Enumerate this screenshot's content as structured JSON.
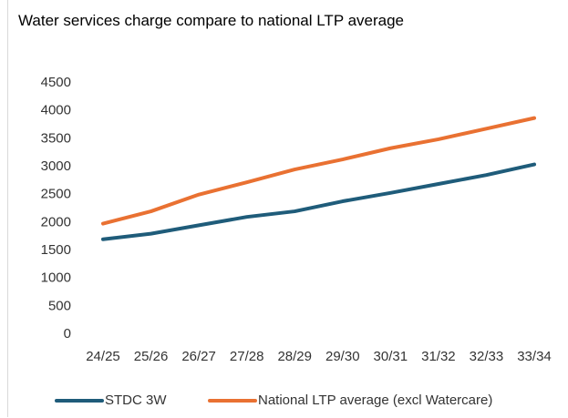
{
  "chart_data": {
    "type": "line",
    "title": "Water services charge compare to national LTP average",
    "categories": [
      "24/25",
      "25/26",
      "26/27",
      "27/28",
      "28/29",
      "29/30",
      "30/31",
      "31/32",
      "32/33",
      "33/34"
    ],
    "series": [
      {
        "name": "STDC 3W",
        "color": "#1f5c7a",
        "values": [
          1700,
          1800,
          1950,
          2100,
          2200,
          2380,
          2530,
          2690,
          2850,
          3040
        ]
      },
      {
        "name": "National LTP average (excl Watercare)",
        "color": "#e97132",
        "values": [
          1980,
          2200,
          2500,
          2720,
          2950,
          3130,
          3330,
          3490,
          3680,
          3870
        ]
      }
    ],
    "ylim": [
      0,
      4500
    ],
    "yticks": [
      0,
      500,
      1000,
      1500,
      2000,
      2500,
      3000,
      3500,
      4000,
      4500
    ],
    "grid": false,
    "legend": "bottom"
  }
}
